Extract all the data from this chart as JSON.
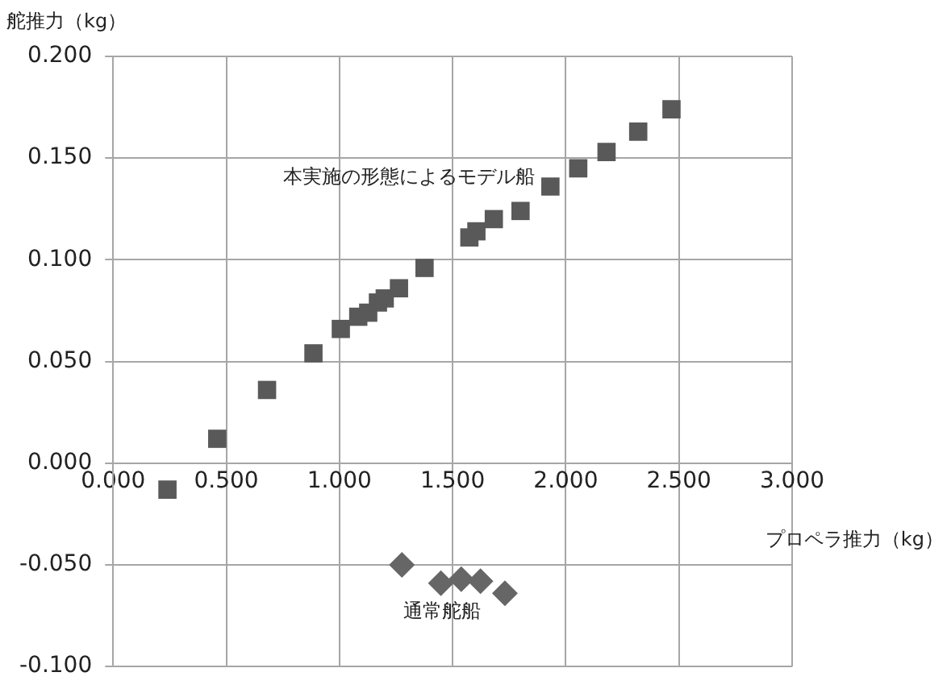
{
  "chart_data": {
    "type": "scatter",
    "xlabel": "プロペラ推力（kg）",
    "ylabel": "舵推力（kg）",
    "xlim": [
      0,
      3
    ],
    "xticks": [
      {
        "value": 0,
        "label": "0.000"
      },
      {
        "value": 0.5,
        "label": "0.500"
      },
      {
        "value": 1,
        "label": "1.000"
      },
      {
        "value": 1.5,
        "label": "1.500"
      },
      {
        "value": 2,
        "label": "2.000"
      },
      {
        "value": 2.5,
        "label": "2.500"
      },
      {
        "value": 3,
        "label": "3.000"
      }
    ],
    "ylim": [
      -0.1,
      0.2
    ],
    "yticks": [
      {
        "value": -0.1,
        "label": "-0.100"
      },
      {
        "value": -0.05,
        "label": "-0.050"
      },
      {
        "value": 0,
        "label": "0.000"
      },
      {
        "value": 0.05,
        "label": "0.050"
      },
      {
        "value": 0.1,
        "label": "0.100"
      },
      {
        "value": 0.15,
        "label": "0.150"
      },
      {
        "value": 0.2,
        "label": "0.200"
      }
    ],
    "grid": true,
    "legend": false,
    "series": [
      {
        "name": "本実施の形態によるモデル船",
        "color": "#595959",
        "marker": "square",
        "x": [
          0.24,
          0.46,
          0.68,
          0.885,
          1.006,
          1.083,
          1.127,
          1.17,
          1.2,
          1.263,
          1.376,
          1.574,
          1.605,
          1.682,
          1.8,
          1.932,
          2.055,
          2.18,
          2.32,
          2.467
        ],
        "values": [
          -0.013,
          0.012,
          0.036,
          0.054,
          0.066,
          0.072,
          0.074,
          0.079,
          0.081,
          0.086,
          0.096,
          0.111,
          0.114,
          0.12,
          0.124,
          0.136,
          0.145,
          0.153,
          0.163,
          0.174
        ]
      },
      {
        "name": "通常舵船",
        "color": "#666666",
        "marker": "diamond",
        "x": [
          1.276,
          1.448,
          1.538,
          1.623,
          1.731
        ],
        "values": [
          -0.05,
          -0.059,
          -0.057,
          -0.058,
          -0.064
        ]
      }
    ]
  }
}
